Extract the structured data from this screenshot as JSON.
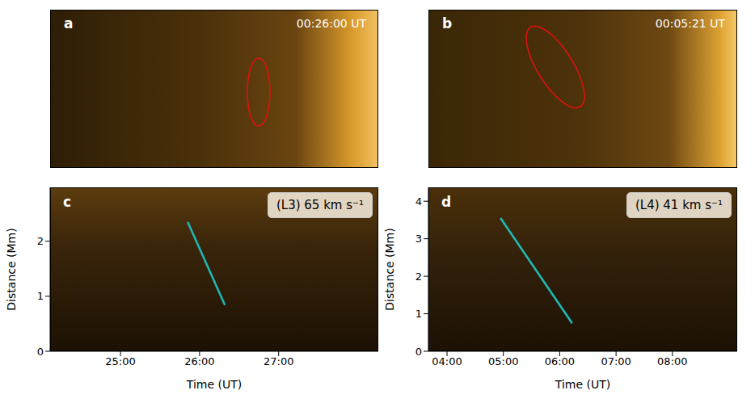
{
  "images": [
    {
      "label": "a",
      "time": "00:26:00 UT"
    },
    {
      "label": "b",
      "time": "00:05:21 UT"
    }
  ],
  "chart_data": [
    {
      "type": "line",
      "label": "c",
      "annotation": "(L3) 65 km s⁻¹",
      "xlabel": "Time (UT)",
      "ylabel": "Distance (Mm)",
      "x": [
        25.85,
        26.32
      ],
      "values": [
        2.35,
        0.84
      ],
      "color": "#1fb8b4",
      "line_style": "solid",
      "xlim": [
        24.11,
        28.26
      ],
      "xticks": [
        {
          "value": 25,
          "label": "25:00"
        },
        {
          "value": 26,
          "label": "26:00"
        },
        {
          "value": 27,
          "label": "27:00"
        }
      ],
      "ylim": [
        0,
        2.98
      ],
      "yticks": [
        0,
        1,
        2
      ]
    },
    {
      "type": "line",
      "label": "d",
      "annotation": "(L4) 41 km s⁻¹",
      "xlabel": "Time (UT)",
      "ylabel": "Distance (Mm)",
      "x": [
        4.95,
        6.22
      ],
      "values": [
        3.55,
        0.75
      ],
      "color": "#1fb8b4",
      "line_style": "solid",
      "xlim": [
        3.67,
        9.15
      ],
      "xticks": [
        {
          "value": 4,
          "label": "04:00"
        },
        {
          "value": 5,
          "label": "05:00"
        },
        {
          "value": 6,
          "label": "06:00"
        },
        {
          "value": 7,
          "label": "07:00"
        },
        {
          "value": 8,
          "label": "08:00"
        }
      ],
      "ylim": [
        0,
        4.37
      ],
      "yticks": [
        0,
        1,
        2,
        3,
        4
      ]
    }
  ]
}
